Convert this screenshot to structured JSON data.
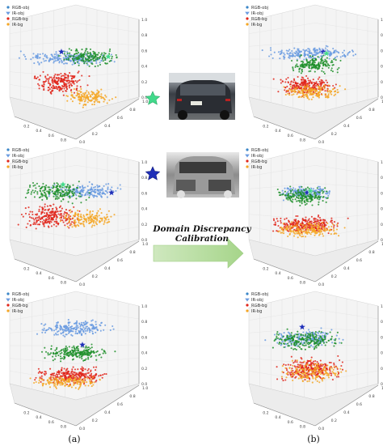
{
  "legend_labels": [
    "RGB-obj",
    "IR-obj",
    "RGB-bg",
    "IR-bg"
  ],
  "colors": {
    "RGB-obj": "#3a86c8",
    "IR-obj": "#6a9be0",
    "RGB-bg": "#e0261b",
    "IR-bg": "#f5a623",
    "obj_green": "#1f8f2a",
    "rgb_star": "#41d98a",
    "ir_star": "#1f2fb8",
    "arrow": "#b8dca0"
  },
  "tick_labels": {
    "base": [
      "0.0",
      "0.2",
      "0.4",
      "0.6",
      "0.8",
      "1.0"
    ],
    "side": [
      "0.0",
      "0.2",
      "0.4",
      "0.6",
      "0.8",
      "1.0"
    ],
    "vertical": [
      "0.0",
      "0.2",
      "0.4",
      "0.6",
      "0.8",
      "1.0"
    ]
  },
  "center": {
    "calibration_line1": "Domain Discrepancy",
    "calibration_line2": "Calibration",
    "rgb_star_icon": "star-icon",
    "ir_star_icon": "star-icon"
  },
  "captions": {
    "left": "(a)",
    "right": "(b)"
  }
}
